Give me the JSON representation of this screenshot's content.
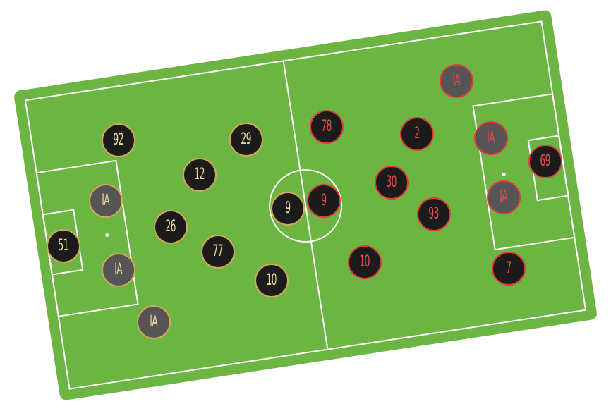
{
  "colors": {
    "pitch": "#6db542",
    "lines": "#ffffff",
    "home_ring": "#d4a85a",
    "home_text": "#ead9a0",
    "away_ring": "#e03a3a",
    "away_text": "#e85050",
    "token_fill": "#1b1b1b",
    "sub_fill": "#555555"
  },
  "home": {
    "players": [
      {
        "id": "home-51",
        "label": "51"
      },
      {
        "id": "home-ia-1",
        "label": "IA"
      },
      {
        "id": "home-ia-2",
        "label": "IA"
      },
      {
        "id": "home-ia-3",
        "label": "IA"
      },
      {
        "id": "home-92",
        "label": "92"
      },
      {
        "id": "home-26",
        "label": "26"
      },
      {
        "id": "home-12",
        "label": "12"
      },
      {
        "id": "home-77",
        "label": "77"
      },
      {
        "id": "home-29",
        "label": "29"
      },
      {
        "id": "home-10",
        "label": "10"
      },
      {
        "id": "home-9",
        "label": "9"
      }
    ]
  },
  "away": {
    "players": [
      {
        "id": "away-9",
        "label": "9"
      },
      {
        "id": "away-78",
        "label": "78"
      },
      {
        "id": "away-10",
        "label": "10"
      },
      {
        "id": "away-30",
        "label": "30"
      },
      {
        "id": "away-2",
        "label": "2"
      },
      {
        "id": "away-93",
        "label": "93"
      },
      {
        "id": "away-ia-1",
        "label": "IA"
      },
      {
        "id": "away-ia-2",
        "label": "IA"
      },
      {
        "id": "away-ia-3",
        "label": "IA"
      },
      {
        "id": "away-7",
        "label": "7"
      },
      {
        "id": "away-69",
        "label": "69"
      }
    ]
  }
}
